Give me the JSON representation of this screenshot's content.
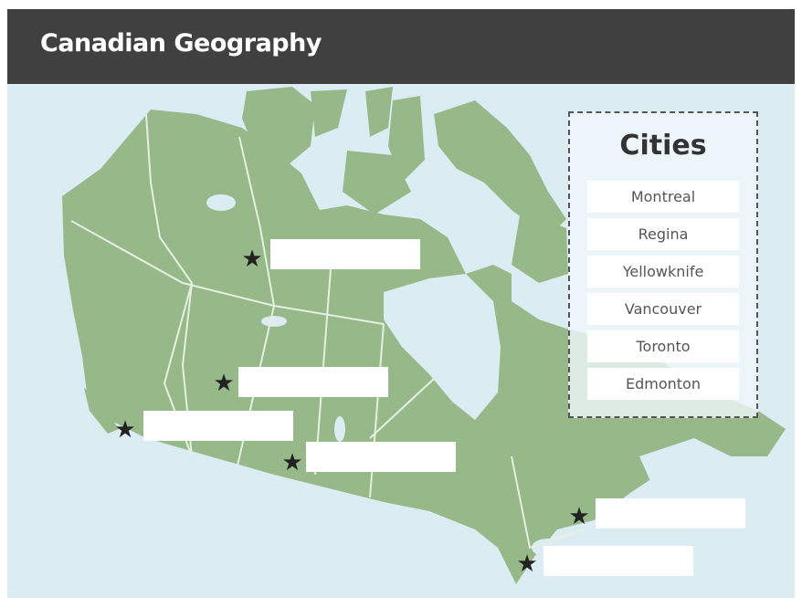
{
  "header": {
    "title": "Canadian Geography"
  },
  "colors": {
    "header": "#404040",
    "water": "#dbecf2",
    "land": "#97b98a",
    "border": "#e8f0e4"
  },
  "panel": {
    "title": "Cities",
    "cities": [
      "Montreal",
      "Regina",
      "Yellowknife",
      "Vancouver",
      "Toronto",
      "Edmonton"
    ]
  },
  "map": {
    "markers": [
      {
        "icon": "star-icon",
        "answer": ""
      },
      {
        "icon": "star-icon",
        "answer": ""
      },
      {
        "icon": "star-icon",
        "answer": ""
      },
      {
        "icon": "star-icon",
        "answer": ""
      },
      {
        "icon": "star-icon",
        "answer": ""
      },
      {
        "icon": "star-icon",
        "answer": ""
      }
    ]
  }
}
